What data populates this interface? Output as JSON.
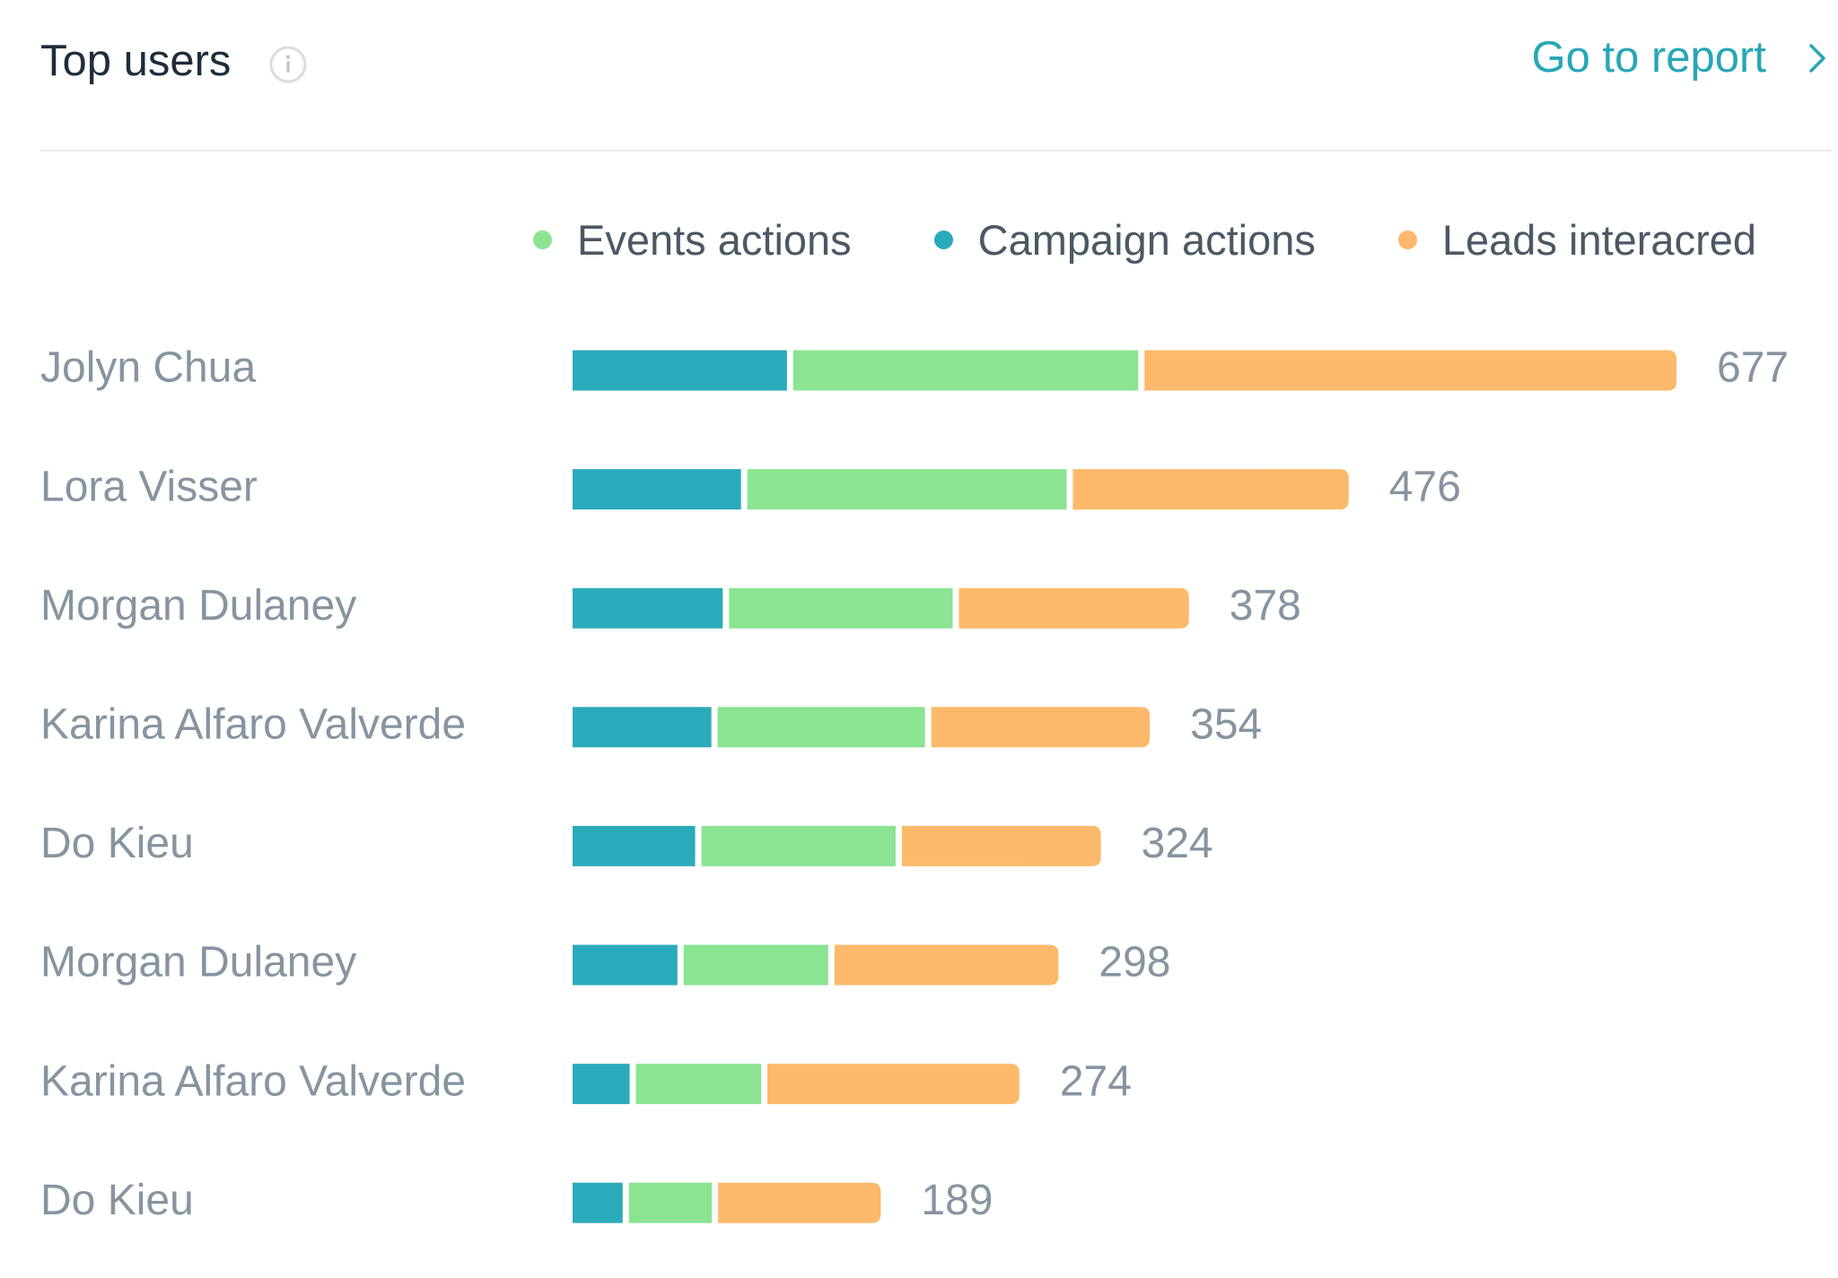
{
  "header": {
    "title": "Top users",
    "info_icon": "info-icon",
    "report_link": "Go to report",
    "report_icon": "chevron-right-icon",
    "link_color": "#27a7b6"
  },
  "chart_data": {
    "type": "bar",
    "orientation": "horizontal",
    "stacked": true,
    "categories": [
      "Jolyn Chua",
      "Lora Visser",
      "Morgan Dulaney",
      "Karina Alfaro Valverde",
      "Do Kieu",
      "Morgan Dulaney",
      "Karina Alfaro Valverde",
      "Do Kieu"
    ],
    "series": [
      {
        "name": "Campaign actions",
        "color": "#2aabbb",
        "values": [
          133,
          105,
          94,
          87,
          77,
          66,
          36,
          32
        ]
      },
      {
        "name": "Events actions",
        "color": "#8ae491",
        "values": [
          214,
          199,
          140,
          130,
          122,
          91,
          79,
          53
        ]
      },
      {
        "name": "Leads interacred",
        "color": "#fdb96b",
        "values": [
          330,
          172,
          144,
          137,
          125,
          141,
          159,
          104
        ]
      }
    ],
    "totals": [
      "677",
      "476",
      "378",
      "354",
      "324",
      "298",
      "274",
      "189"
    ],
    "legend": {
      "position": "top-right",
      "order": [
        "Events actions",
        "Campaign actions",
        "Leads interacred"
      ]
    },
    "xlim": [
      0,
      677
    ],
    "grid": false
  }
}
